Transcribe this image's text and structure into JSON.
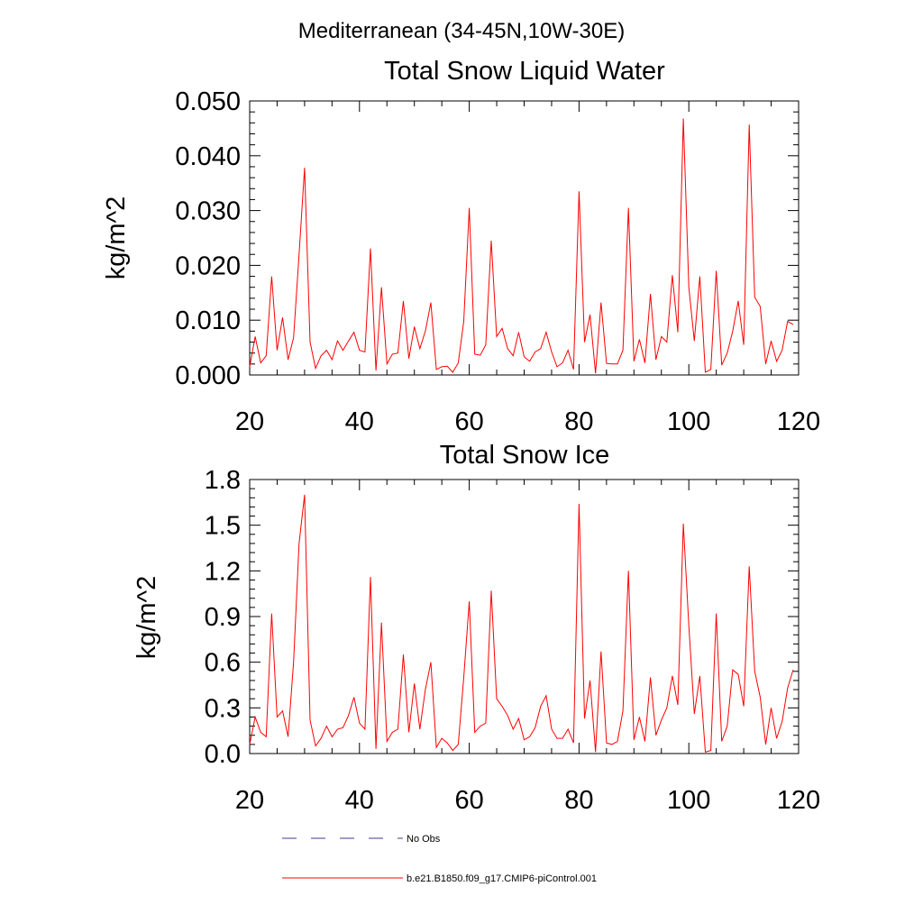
{
  "header": {
    "region": "Mediterranean (34-45N,10W-30E)"
  },
  "legend": {
    "obs_label": "No Obs",
    "obs_color": "#3c3c8c",
    "model_label": "b.e21.B1850.f09_g17.CMIP6-piControl.001",
    "model_color": "#ff0000"
  },
  "chart_data": [
    {
      "type": "line",
      "title": "Total Snow Liquid Water",
      "xlabel": "",
      "ylabel": "kg/m^2",
      "xlim": [
        20,
        120
      ],
      "ylim": [
        0,
        0.05
      ],
      "xticks": [
        20,
        40,
        60,
        80,
        100,
        120
      ],
      "xtick_labels": [
        "20",
        "40",
        "60",
        "80",
        "100",
        "120"
      ],
      "yticks": [
        0,
        0.01,
        0.02,
        0.03,
        0.04,
        0.05
      ],
      "ytick_labels": [
        "0.000",
        "0.010",
        "0.020",
        "0.030",
        "0.040",
        "0.050"
      ],
      "grid": false,
      "series": [
        {
          "color": "#ff0000",
          "x": [
            20,
            21,
            22,
            23,
            24,
            25,
            26,
            27,
            28,
            29,
            30,
            31,
            32,
            33,
            34,
            35,
            36,
            37,
            38,
            39,
            40,
            41,
            42,
            43,
            44,
            45,
            46,
            47,
            48,
            49,
            50,
            51,
            52,
            53,
            54,
            55,
            56,
            57,
            58,
            59,
            60,
            61,
            62,
            63,
            64,
            65,
            66,
            67,
            68,
            69,
            70,
            71,
            72,
            73,
            74,
            75,
            76,
            77,
            78,
            79,
            80,
            81,
            82,
            83,
            84,
            85,
            86,
            87,
            88,
            89,
            90,
            91,
            92,
            93,
            94,
            95,
            96,
            97,
            98,
            99,
            100,
            101,
            102,
            103,
            104,
            105,
            106,
            107,
            108,
            109,
            110,
            111,
            112,
            113,
            114,
            115,
            116,
            117,
            118,
            119
          ],
          "values": [
            0.0015,
            0.007,
            0.0022,
            0.0035,
            0.018,
            0.0045,
            0.0105,
            0.0028,
            0.0068,
            0.022,
            0.0378,
            0.006,
            0.0012,
            0.0035,
            0.0045,
            0.0028,
            0.0062,
            0.0045,
            0.0062,
            0.0078,
            0.0045,
            0.0042,
            0.0231,
            0.0008,
            0.016,
            0.002,
            0.0038,
            0.004,
            0.0135,
            0.003,
            0.0088,
            0.0048,
            0.008,
            0.0132,
            0.001,
            0.0015,
            0.0016,
            0.0005,
            0.0022,
            0.0098,
            0.0305,
            0.0038,
            0.0036,
            0.0055,
            0.0245,
            0.007,
            0.0085,
            0.0048,
            0.0035,
            0.0078,
            0.0033,
            0.0025,
            0.0042,
            0.0048,
            0.0078,
            0.0042,
            0.0015,
            0.0022,
            0.0045,
            0.001,
            0.0335,
            0.006,
            0.011,
            0.0003,
            0.0132,
            0.0021,
            0.002,
            0.002,
            0.0045,
            0.0305,
            0.0025,
            0.0065,
            0.0022,
            0.0148,
            0.0028,
            0.007,
            0.006,
            0.0182,
            0.0078,
            0.0468,
            0.016,
            0.0062,
            0.018,
            0.0005,
            0.001,
            0.019,
            0.0018,
            0.004,
            0.008,
            0.0135,
            0.0055,
            0.0457,
            0.0142,
            0.0125,
            0.002,
            0.0062,
            0.0025,
            0.0045,
            0.0098,
            0.0092
          ]
        }
      ]
    },
    {
      "type": "line",
      "title": "Total Snow Ice",
      "xlabel": "",
      "ylabel": "kg/m^2",
      "xlim": [
        20,
        120
      ],
      "ylim": [
        0,
        1.8
      ],
      "xticks": [
        20,
        40,
        60,
        80,
        100,
        120
      ],
      "xtick_labels": [
        "20",
        "40",
        "60",
        "80",
        "100",
        "120"
      ],
      "yticks": [
        0,
        0.3,
        0.6,
        0.9,
        1.2,
        1.5,
        1.8
      ],
      "ytick_labels": [
        "0.0",
        "0.3",
        "0.6",
        "0.9",
        "1.2",
        "1.5",
        "1.8"
      ],
      "grid": false,
      "series": [
        {
          "color": "#ff0000",
          "x": [
            20,
            21,
            22,
            23,
            24,
            25,
            26,
            27,
            28,
            29,
            30,
            31,
            32,
            33,
            34,
            35,
            36,
            37,
            38,
            39,
            40,
            41,
            42,
            43,
            44,
            45,
            46,
            47,
            48,
            49,
            50,
            51,
            52,
            53,
            54,
            55,
            56,
            57,
            58,
            59,
            60,
            61,
            62,
            63,
            64,
            65,
            66,
            67,
            68,
            69,
            70,
            71,
            72,
            73,
            74,
            75,
            76,
            77,
            78,
            79,
            80,
            81,
            82,
            83,
            84,
            85,
            86,
            87,
            88,
            89,
            90,
            91,
            92,
            93,
            94,
            95,
            96,
            97,
            98,
            99,
            100,
            101,
            102,
            103,
            104,
            105,
            106,
            107,
            108,
            109,
            110,
            111,
            112,
            113,
            114,
            115,
            116,
            117,
            118,
            119
          ],
          "values": [
            0.06,
            0.24,
            0.14,
            0.11,
            0.92,
            0.24,
            0.28,
            0.11,
            0.6,
            1.38,
            1.7,
            0.22,
            0.05,
            0.1,
            0.18,
            0.11,
            0.16,
            0.17,
            0.25,
            0.37,
            0.2,
            0.16,
            1.16,
            0.03,
            0.86,
            0.08,
            0.14,
            0.16,
            0.65,
            0.14,
            0.46,
            0.16,
            0.42,
            0.6,
            0.04,
            0.1,
            0.07,
            0.02,
            0.06,
            0.5,
            1.0,
            0.14,
            0.18,
            0.2,
            1.07,
            0.36,
            0.31,
            0.25,
            0.16,
            0.23,
            0.09,
            0.11,
            0.17,
            0.31,
            0.38,
            0.16,
            0.1,
            0.1,
            0.16,
            0.07,
            1.64,
            0.23,
            0.48,
            0.01,
            0.67,
            0.07,
            0.06,
            0.08,
            0.28,
            1.2,
            0.09,
            0.24,
            0.08,
            0.5,
            0.12,
            0.22,
            0.3,
            0.51,
            0.32,
            1.51,
            0.84,
            0.26,
            0.51,
            0.01,
            0.02,
            0.92,
            0.08,
            0.18,
            0.55,
            0.52,
            0.31,
            1.23,
            0.54,
            0.37,
            0.06,
            0.3,
            0.1,
            0.21,
            0.43,
            0.55
          ]
        }
      ]
    }
  ]
}
